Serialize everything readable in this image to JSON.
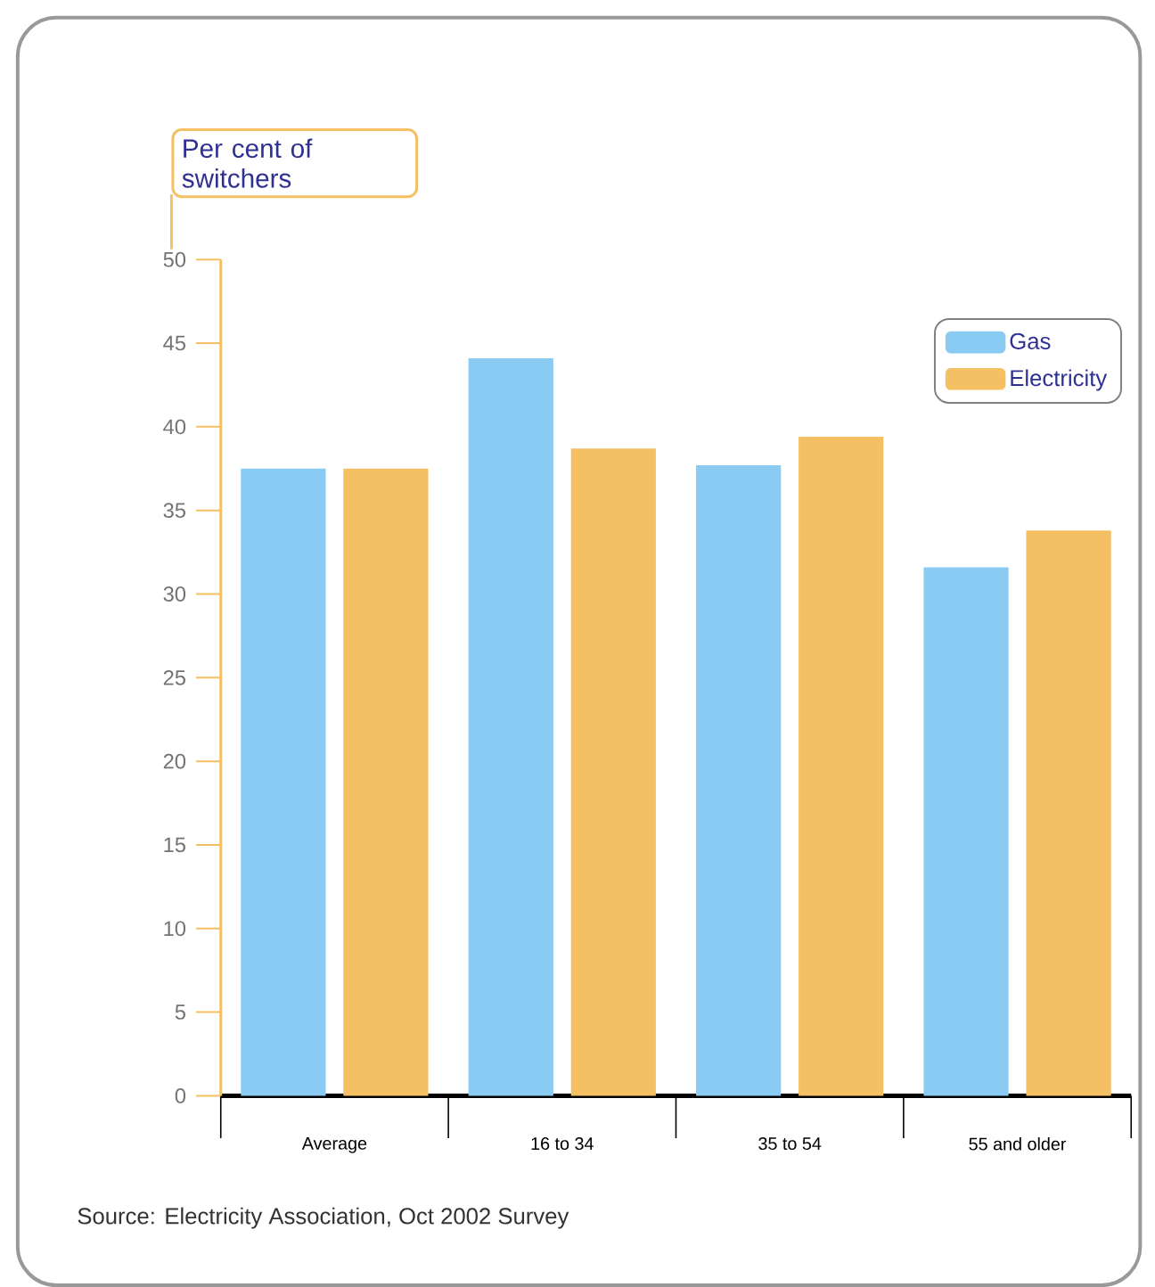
{
  "chart_data": {
    "type": "bar",
    "ylabel": "Per cent of switchers",
    "categories": [
      "Average",
      "16 to 34",
      "35 to 54",
      "55 and older"
    ],
    "series": [
      {
        "name": "Gas",
        "color": "#89cbf2",
        "values": [
          37.5,
          44.1,
          37.7,
          31.6
        ]
      },
      {
        "name": "Electricity",
        "color": "#f5bf63",
        "values": [
          37.5,
          38.7,
          39.4,
          33.8
        ]
      }
    ],
    "ylim": [
      0,
      50
    ],
    "yticks": [
      0,
      5,
      10,
      15,
      20,
      25,
      30,
      35,
      40,
      45,
      50
    ],
    "legend": "top right",
    "annotations": [
      "Source: Electricity Association, Oct 2002 Survey"
    ]
  }
}
